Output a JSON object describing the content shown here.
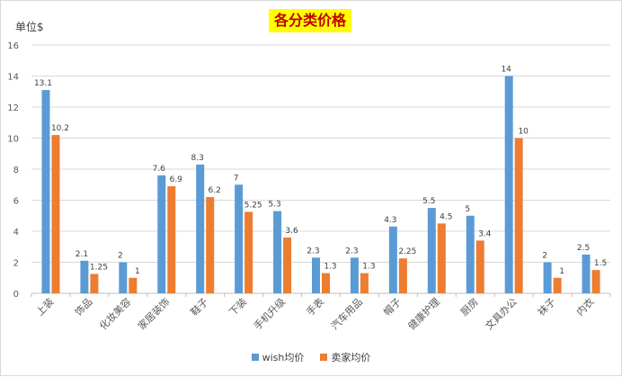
{
  "chart_data": {
    "type": "bar",
    "title": "各分类价格",
    "ylabel": "单位$",
    "ylim": [
      0,
      16
    ],
    "yticks": [
      0,
      2,
      4,
      6,
      8,
      10,
      12,
      14,
      16
    ],
    "grid": true,
    "legend_position": "bottom",
    "categories": [
      "上装",
      "饰品",
      "化妆美容",
      "家居装饰",
      "鞋子",
      "下装",
      "手机升级",
      "手表",
      "汽车用品",
      "帽子",
      "健康护理",
      "厨房",
      "文具办公",
      "袜子",
      "内衣"
    ],
    "series": [
      {
        "name": "wish均价",
        "color": "#5b9bd5",
        "values": [
          13.1,
          2.1,
          2,
          7.6,
          8.3,
          7,
          5.3,
          2.3,
          2.3,
          4.3,
          5.5,
          5,
          14,
          2,
          2.5
        ],
        "labels": [
          "13.1",
          "2.1",
          "2",
          "7.6",
          "8.3",
          "7",
          "5.3",
          "2.3",
          "2.3",
          "4.3",
          "5.5",
          "5",
          "14",
          "2",
          "2.5"
        ]
      },
      {
        "name": "卖家均价",
        "color": "#ed7d31",
        "values": [
          10.2,
          1.25,
          1,
          6.9,
          6.2,
          5.25,
          3.6,
          1.3,
          1.3,
          2.25,
          4.5,
          3.4,
          10,
          1,
          1.5
        ],
        "labels": [
          "10.2",
          "1.25",
          "1",
          "6.9",
          "6.2",
          "5.25",
          "3.6",
          "1.3",
          "1.3",
          "2.25",
          "4.5",
          "3.4",
          "10",
          "1",
          "1.5"
        ]
      }
    ]
  }
}
